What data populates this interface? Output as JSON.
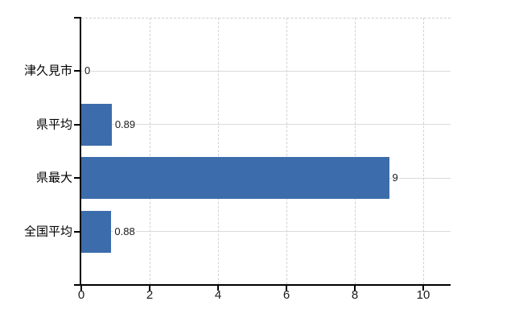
{
  "chart_data": {
    "type": "bar",
    "orientation": "horizontal",
    "title": "",
    "categories": [
      "津久見市",
      "県平均",
      "県最大",
      "全国平均"
    ],
    "values": [
      0,
      0.89,
      9,
      0.88
    ],
    "value_labels": [
      "0",
      "0.89",
      "9",
      "0.88"
    ],
    "x_ticks": [
      0,
      2,
      4,
      6,
      8,
      10
    ],
    "x_tick_labels": [
      "0",
      "2",
      "4",
      "6",
      "8",
      "10"
    ],
    "xlim": [
      0,
      10.8
    ],
    "xlabel": "",
    "ylabel": "",
    "legend": "none",
    "grid": {
      "horizontal_style": "solid",
      "vertical_style": "dashed",
      "plot_top_border_style": "dashed"
    },
    "colors": {
      "bar": "#3d6dac",
      "bar_dither_light": "#4a79b8",
      "bar_dither_dark": "#2f5f9e",
      "axis": "#000000",
      "gridline_horizontal": "#d8dcd6",
      "gridline_vertical": "#d2d2d6",
      "text": "#1a1a1a",
      "background": "#ffffff"
    }
  }
}
